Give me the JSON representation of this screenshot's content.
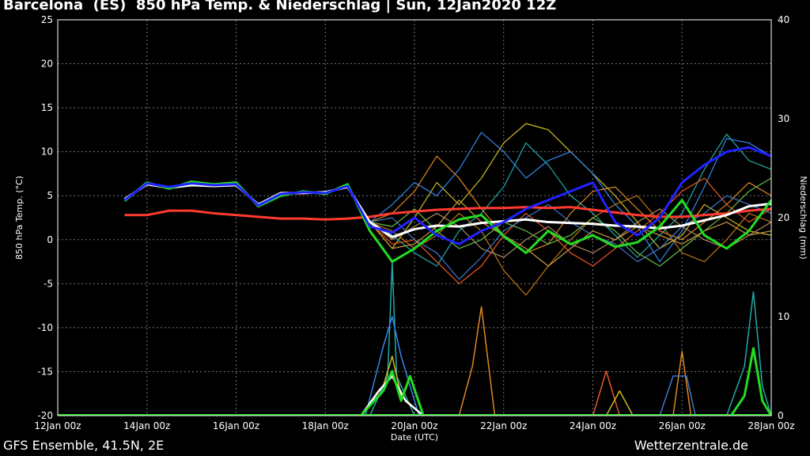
{
  "title": "Barcelona  (ES)  850 hPa Temp. & Niederschlag | Sun, 12Jan2020 12Z",
  "footer_left": "GFS Ensemble, 41.5N, 2E",
  "footer_right": "Wetterzentrale.de",
  "colors": {
    "background": "#000000",
    "axis": "#ffffff",
    "grid": "#777777",
    "control": "#ff3b30",
    "ensemble_mean": "#ffffff",
    "operational": "#22dd22"
  },
  "chart_data": {
    "type": "line",
    "xlabel": "Date (UTC)",
    "ylabel": "850 hPa Temp. (°C)",
    "y2label": "Niederschlag (mm)",
    "xlim": [
      0,
      16
    ],
    "ylim": [
      -20,
      25
    ],
    "y2lim": [
      0,
      40
    ],
    "grid": true,
    "x_tick_labels": [
      "12Jan 00z",
      "14Jan 00z",
      "16Jan 00z",
      "18Jan 00z",
      "20Jan 00z",
      "22Jan 00z",
      "24Jan 00z",
      "26Jan 00z",
      "28Jan 00z"
    ],
    "y_ticks": [
      -20,
      -15,
      -10,
      -5,
      0,
      5,
      10,
      15,
      20,
      25
    ],
    "y2_ticks": [
      0,
      10,
      20,
      30,
      40
    ],
    "x_unit": "days since 12Jan 00z",
    "temperature_series": [
      {
        "color": "#ff3b30",
        "width": 3,
        "x": [
          1.5,
          2,
          2.5,
          3,
          3.5,
          4,
          4.5,
          5,
          5.5,
          6,
          6.5,
          7,
          7.5,
          8,
          8.5,
          9,
          9.5,
          10,
          10.5,
          11,
          11.5,
          12,
          12.5,
          13,
          13.5,
          14,
          14.5,
          15,
          15.5,
          16
        ],
        "values": [
          2.8,
          2.8,
          3.3,
          3.3,
          3,
          2.8,
          2.6,
          2.4,
          2.4,
          2.3,
          2.4,
          2.6,
          3,
          3.2,
          3.4,
          3.5,
          3.6,
          3.6,
          3.7,
          3.6,
          3.7,
          3.4,
          3.1,
          2.8,
          2.6,
          2.6,
          2.8,
          3,
          3.3,
          3.5
        ]
      },
      {
        "color": "#ffffff",
        "width": 3,
        "x": [
          1.5,
          2,
          2.5,
          3,
          3.5,
          4,
          4.5,
          5,
          5.5,
          6,
          6.5,
          7,
          7.5,
          8,
          8.5,
          9,
          9.5,
          10,
          10.5,
          11,
          11.5,
          12,
          12.5,
          13,
          13.5,
          14,
          14.5,
          15,
          15.5,
          16
        ],
        "values": [
          4.6,
          6.3,
          5.9,
          6.2,
          6.1,
          6.2,
          4.0,
          5.3,
          5.3,
          5.4,
          6.0,
          2.0,
          0.3,
          1.2,
          1.6,
          1.5,
          1.9,
          2.1,
          2.3,
          2.0,
          1.9,
          1.8,
          1.6,
          1.5,
          1.3,
          1.6,
          2.2,
          2.8,
          3.8,
          4.1
        ]
      },
      {
        "color": "#22dd22",
        "width": 3,
        "x": [
          1.5,
          2,
          2.5,
          3,
          3.5,
          4,
          4.5,
          5,
          5.5,
          6,
          6.5,
          7,
          7.5,
          8,
          8.5,
          9,
          9.5,
          10,
          10.5,
          11,
          11.5,
          12,
          12.5,
          13,
          13.5,
          14,
          14.5,
          15,
          15.5,
          16
        ],
        "values": [
          4.4,
          6.5,
          5.8,
          6.6,
          6.3,
          6.5,
          3.8,
          5.0,
          5.5,
          5.2,
          6.3,
          1.0,
          -2.5,
          -1.0,
          1.0,
          2.3,
          2.8,
          0.4,
          -1.5,
          1.0,
          -0.5,
          0.5,
          -0.8,
          -0.3,
          1.5,
          4.5,
          0.5,
          -1.0,
          1.0,
          4.5
        ]
      },
      {
        "color": "#2222ff",
        "width": 3,
        "x": [
          1.5,
          2,
          2.5,
          3,
          3.5,
          4,
          4.5,
          5,
          5.5,
          6,
          6.5,
          7,
          7.5,
          8,
          8.5,
          9,
          9.5,
          10,
          10.5,
          11,
          11.5,
          12,
          12.5,
          13,
          13.5,
          14,
          14.5,
          15,
          15.5,
          16
        ],
        "values": [
          4.5,
          6.4,
          6.0,
          6.4,
          6.2,
          6.3,
          3.9,
          5.2,
          5.4,
          5.3,
          6.1,
          1.5,
          0.8,
          2.5,
          0.5,
          -0.5,
          1.0,
          2.0,
          3.5,
          4.5,
          5.5,
          6.5,
          2.0,
          0.5,
          2.5,
          6.5,
          8.5,
          10.0,
          10.5,
          9.5
        ]
      },
      {
        "color": "#ccbb22",
        "width": 1.2,
        "x": [
          7,
          7.5,
          8,
          8.5,
          9,
          9.5,
          10,
          10.5,
          11,
          11.5,
          12,
          12.5,
          13,
          13.5,
          14,
          14.5,
          15,
          15.5,
          16
        ],
        "values": [
          2.0,
          -1.0,
          2.5,
          6.5,
          4.0,
          7.0,
          11.0,
          13.2,
          12.5,
          10.0,
          7.5,
          5.0,
          2.0,
          -1.0,
          0.5,
          4.0,
          2.5,
          1.0,
          0.5
        ]
      },
      {
        "color": "#3388ee",
        "width": 1.2,
        "x": [
          7,
          7.5,
          8,
          8.5,
          9,
          9.5,
          10,
          10.5,
          11,
          11.5,
          12,
          12.5,
          13,
          13.5,
          14,
          14.5,
          15,
          15.5,
          16
        ],
        "values": [
          2.0,
          4.0,
          6.5,
          5.0,
          8.0,
          12.2,
          10.0,
          7.0,
          9.0,
          10.0,
          7.5,
          4.0,
          1.5,
          -2.5,
          1.0,
          6.0,
          11.5,
          11.0,
          9.5
        ]
      },
      {
        "color": "#22aaaa",
        "width": 1.2,
        "x": [
          7,
          7.5,
          8,
          8.5,
          9,
          9.5,
          10,
          10.5,
          11,
          11.5,
          12,
          12.5,
          13,
          13.5,
          14,
          14.5,
          15,
          15.5,
          16
        ],
        "values": [
          2.0,
          0.5,
          -1.5,
          -3.0,
          1.0,
          3.0,
          6.0,
          11.0,
          8.5,
          5.0,
          3.0,
          0.5,
          -2.0,
          0.5,
          3.0,
          8.0,
          12.0,
          9.0,
          8.0
        ]
      },
      {
        "color": "#dd8822",
        "width": 1.2,
        "x": [
          7,
          7.5,
          8,
          8.5,
          9,
          9.5,
          10,
          10.5,
          11,
          11.5,
          12,
          12.5,
          13,
          13.5,
          14,
          14.5,
          15,
          15.5,
          16
        ],
        "values": [
          2.0,
          3.0,
          5.5,
          9.5,
          7.0,
          3.5,
          0.5,
          -1.5,
          -0.5,
          3.0,
          5.5,
          6.0,
          3.5,
          1.0,
          0.0,
          2.0,
          4.0,
          6.5,
          5.0
        ]
      },
      {
        "color": "#bb7711",
        "width": 1.2,
        "x": [
          7,
          7.5,
          8,
          8.5,
          9,
          9.5,
          10,
          10.5,
          11,
          11.5,
          12,
          12.5,
          13,
          13.5,
          14,
          14.5,
          15,
          15.5,
          16
        ],
        "values": [
          2.0,
          1.0,
          -1.0,
          0.5,
          3.0,
          1.0,
          -3.5,
          -6.3,
          -3.0,
          0.0,
          2.5,
          4.0,
          5.0,
          2.0,
          -1.5,
          -2.5,
          0.0,
          3.0,
          2.0
        ]
      },
      {
        "color": "#ee5522",
        "width": 1.2,
        "x": [
          7,
          7.5,
          8,
          8.5,
          9,
          9.5,
          10,
          10.5,
          11,
          11.5,
          12,
          12.5,
          13,
          13.5,
          14,
          14.5,
          15,
          15.5,
          16
        ],
        "values": [
          2.0,
          -0.5,
          0.0,
          -2.5,
          -5.0,
          -3.0,
          0.5,
          3.0,
          1.0,
          -1.5,
          -3.0,
          -1.0,
          1.0,
          3.0,
          5.5,
          7.0,
          4.0,
          2.0,
          3.5
        ]
      },
      {
        "color": "#66bb44",
        "width": 1.2,
        "x": [
          7,
          7.5,
          8,
          8.5,
          9,
          9.5,
          10,
          10.5,
          11,
          11.5,
          12,
          12.5,
          13,
          13.5,
          14,
          14.5,
          15,
          15.5,
          16
        ],
        "values": [
          2.0,
          1.5,
          3.5,
          1.0,
          -1.0,
          0.0,
          2.0,
          1.0,
          -0.5,
          0.5,
          2.5,
          1.0,
          -1.5,
          -3.0,
          -1.0,
          1.0,
          3.0,
          5.5,
          7.0
        ]
      },
      {
        "color": "#aa8866",
        "width": 1.2,
        "x": [
          7,
          7.5,
          8,
          8.5,
          9,
          9.5,
          10,
          10.5,
          11,
          11.5,
          12,
          12.5,
          13,
          13.5,
          14,
          14.5,
          15,
          15.5,
          16
        ],
        "values": [
          2.0,
          0.0,
          1.5,
          3.0,
          1.5,
          -1.0,
          -2.0,
          0.0,
          1.5,
          -0.5,
          -1.5,
          0.0,
          2.0,
          3.5,
          1.5,
          0.0,
          -1.0,
          0.5,
          2.0
        ]
      },
      {
        "color": "#4477cc",
        "width": 1.2,
        "x": [
          7,
          7.5,
          8,
          8.5,
          9,
          9.5,
          10,
          10.5,
          11,
          11.5,
          12,
          12.5,
          13,
          13.5,
          14,
          14.5,
          15,
          15.5,
          16
        ],
        "values": [
          2.0,
          2.5,
          0.0,
          -1.5,
          -4.5,
          -2.0,
          1.0,
          2.5,
          4.0,
          2.0,
          0.5,
          -0.5,
          -2.5,
          -1.0,
          1.5,
          3.0,
          5.0,
          4.0,
          3.0
        ]
      },
      {
        "color": "#cc9944",
        "width": 1.2,
        "x": [
          7,
          7.5,
          8,
          8.5,
          9,
          9.5,
          10,
          10.5,
          11,
          11.5,
          12,
          12.5,
          13,
          13.5,
          14,
          14.5,
          15,
          15.5,
          16
        ],
        "values": [
          2.0,
          -1.0,
          -0.5,
          1.5,
          4.5,
          2.0,
          0.5,
          -1.0,
          -3.0,
          -1.0,
          1.0,
          0.0,
          1.5,
          0.5,
          -0.5,
          1.0,
          2.0,
          0.5,
          1.0
        ]
      }
    ],
    "precip_series": [
      {
        "color": "#22aaaa",
        "width": 1.5,
        "x": [
          7,
          7.4,
          7.5,
          7.6,
          8.0
        ],
        "values": [
          0,
          4,
          15.5,
          4,
          0
        ]
      },
      {
        "color": "#dd8822",
        "width": 1.5,
        "x": [
          9,
          9.3,
          9.5,
          9.8
        ],
        "values": [
          0,
          5,
          11,
          0
        ]
      },
      {
        "color": "#ccbb22",
        "width": 1.5,
        "x": [
          6.8,
          7.3,
          7.5,
          7.7,
          8.2
        ],
        "values": [
          0,
          3,
          6,
          2,
          0
        ]
      },
      {
        "color": "#3388ee",
        "width": 1.5,
        "x": [
          6.9,
          7.3,
          7.5,
          7.7,
          8.1
        ],
        "values": [
          0,
          7,
          10,
          6,
          0
        ]
      },
      {
        "color": "#ffffff",
        "width": 2.5,
        "x": [
          6.8,
          7.2,
          7.5,
          7.8,
          8.2
        ],
        "values": [
          0,
          2.5,
          4,
          1.5,
          0
        ]
      },
      {
        "color": "#22dd22",
        "width": 3,
        "x": [
          6.8,
          7.3,
          7.5,
          7.7,
          7.9,
          8.2
        ],
        "values": [
          0,
          2.5,
          4.5,
          1.5,
          4,
          0
        ]
      },
      {
        "color": "#ee5522",
        "width": 1.5,
        "x": [
          12,
          12.3,
          12.6
        ],
        "values": [
          0,
          4.5,
          0
        ]
      },
      {
        "color": "#dd8822",
        "width": 1.5,
        "x": [
          13.8,
          14.0,
          14.2
        ],
        "values": [
          0,
          6.5,
          0
        ]
      },
      {
        "color": "#22aaaa",
        "width": 1.5,
        "x": [
          15.0,
          15.4,
          15.6,
          15.8,
          16.0
        ],
        "values": [
          0,
          5,
          12.5,
          3,
          0
        ]
      },
      {
        "color": "#22dd22",
        "width": 3,
        "x": [
          15.1,
          15.4,
          15.6,
          15.8,
          16.0
        ],
        "values": [
          0,
          2,
          6.8,
          1.5,
          0
        ]
      },
      {
        "color": "#ccbb22",
        "width": 1.5,
        "x": [
          12.3,
          12.6,
          12.9
        ],
        "values": [
          0,
          2.5,
          0
        ]
      },
      {
        "color": "#4477cc",
        "width": 1.5,
        "x": [
          13.5,
          13.8,
          14.1,
          14.3
        ],
        "values": [
          0,
          4,
          4,
          0
        ]
      }
    ]
  }
}
